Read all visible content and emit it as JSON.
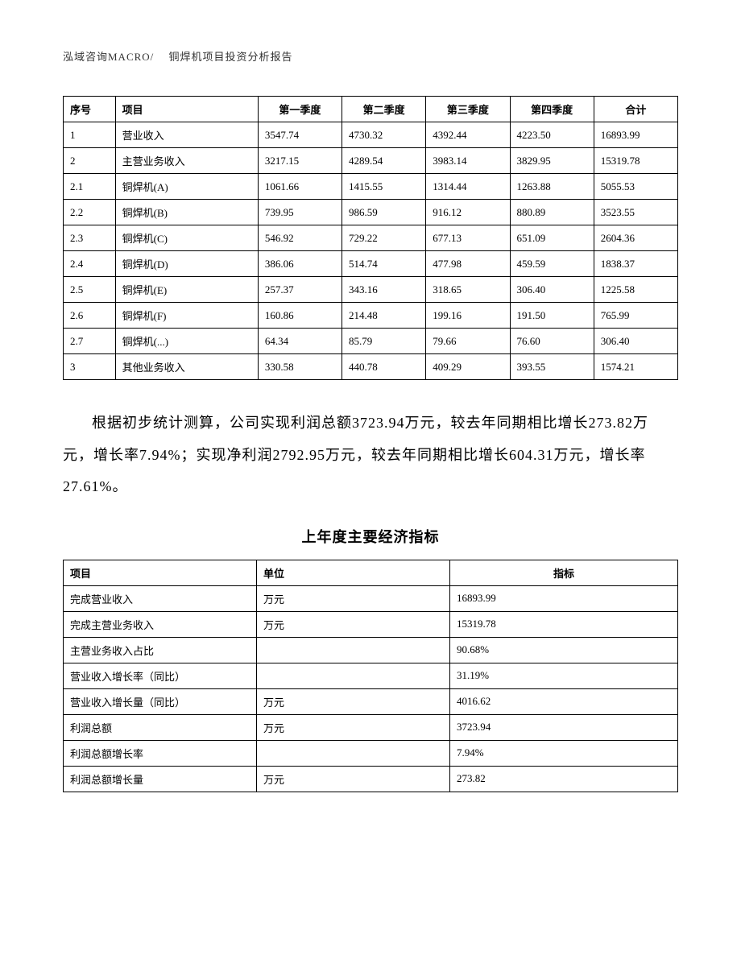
{
  "header": "泓域咨询MACRO/　 铜焊机项目投资分析报告",
  "table1": {
    "columns": [
      "序号",
      "项目",
      "第一季度",
      "第二季度",
      "第三季度",
      "第四季度",
      "合计"
    ],
    "rows": [
      [
        "1",
        "营业收入",
        "3547.74",
        "4730.32",
        "4392.44",
        "4223.50",
        "16893.99"
      ],
      [
        "2",
        "主营业务收入",
        "3217.15",
        "4289.54",
        "3983.14",
        "3829.95",
        "15319.78"
      ],
      [
        "2.1",
        "铜焊机(A)",
        "1061.66",
        "1415.55",
        "1314.44",
        "1263.88",
        "5055.53"
      ],
      [
        "2.2",
        "铜焊机(B)",
        "739.95",
        "986.59",
        "916.12",
        "880.89",
        "3523.55"
      ],
      [
        "2.3",
        "铜焊机(C)",
        "546.92",
        "729.22",
        "677.13",
        "651.09",
        "2604.36"
      ],
      [
        "2.4",
        "铜焊机(D)",
        "386.06",
        "514.74",
        "477.98",
        "459.59",
        "1838.37"
      ],
      [
        "2.5",
        "铜焊机(E)",
        "257.37",
        "343.16",
        "318.65",
        "306.40",
        "1225.58"
      ],
      [
        "2.6",
        "铜焊机(F)",
        "160.86",
        "214.48",
        "199.16",
        "191.50",
        "765.99"
      ],
      [
        "2.7",
        "铜焊机(...)",
        "64.34",
        "85.79",
        "79.66",
        "76.60",
        "306.40"
      ],
      [
        "3",
        "其他业务收入",
        "330.58",
        "440.78",
        "409.29",
        "393.55",
        "1574.21"
      ]
    ]
  },
  "paragraph": "根据初步统计测算，公司实现利润总额3723.94万元，较去年同期相比增长273.82万元，增长率7.94%；实现净利润2792.95万元，较去年同期相比增长604.31万元，增长率27.61%。",
  "subtitle": "上年度主要经济指标",
  "table2": {
    "columns": [
      "项目",
      "单位",
      "指标"
    ],
    "rows": [
      [
        "完成营业收入",
        "万元",
        "16893.99"
      ],
      [
        "完成主营业务收入",
        "万元",
        "15319.78"
      ],
      [
        "主营业务收入占比",
        "",
        "90.68%"
      ],
      [
        "营业收入增长率（同比）",
        "",
        "31.19%"
      ],
      [
        "营业收入增长量（同比）",
        "万元",
        "4016.62"
      ],
      [
        "利润总额",
        "万元",
        "3723.94"
      ],
      [
        "利润总额增长率",
        "",
        "7.94%"
      ],
      [
        "利润总额增长量",
        "万元",
        "273.82"
      ]
    ]
  }
}
